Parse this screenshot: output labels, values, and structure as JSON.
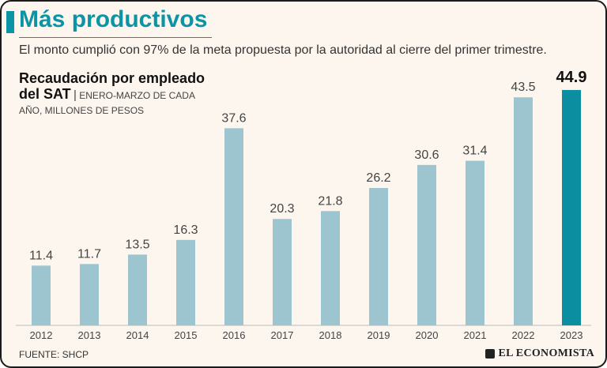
{
  "header": {
    "title": "Más productivos",
    "subtitle": "El monto cumplió con 97% de la meta propuesta por la autoridad al cierre del primer trimestre."
  },
  "chart_heading": {
    "line1": "Recaudación por empleado",
    "line2_bold": "del SAT",
    "separator": "|",
    "note": "ENERO-MARZO DE CADA AÑO, MILLONES DE PESOS"
  },
  "footer": {
    "source": "FUENTE: SHCP",
    "brand": "EL ECONOMISTA"
  },
  "colors": {
    "accent": "#0a94a6",
    "bar": "#9cc5cf",
    "highlight_bar": "#0a8ea0",
    "background": "#fdf6ee"
  },
  "chart_data": {
    "type": "bar",
    "title": "Recaudación por empleado del SAT",
    "ylabel": "Millones de pesos",
    "xlabel": "",
    "ylim": [
      0,
      47
    ],
    "categories": [
      "2012",
      "2013",
      "2014",
      "2015",
      "2016",
      "2017",
      "2018",
      "2019",
      "2020",
      "2021",
      "2022",
      "2023"
    ],
    "values": [
      11.4,
      11.7,
      13.5,
      16.3,
      37.6,
      20.3,
      21.8,
      26.2,
      30.6,
      31.4,
      43.5,
      44.9
    ],
    "labels": [
      "11.4",
      "11.7",
      "13.5",
      "16.3",
      "37.6",
      "20.3",
      "21.8",
      "26.2",
      "30.6",
      "31.4",
      "43.5",
      "44.9"
    ],
    "highlight_index": 11
  }
}
